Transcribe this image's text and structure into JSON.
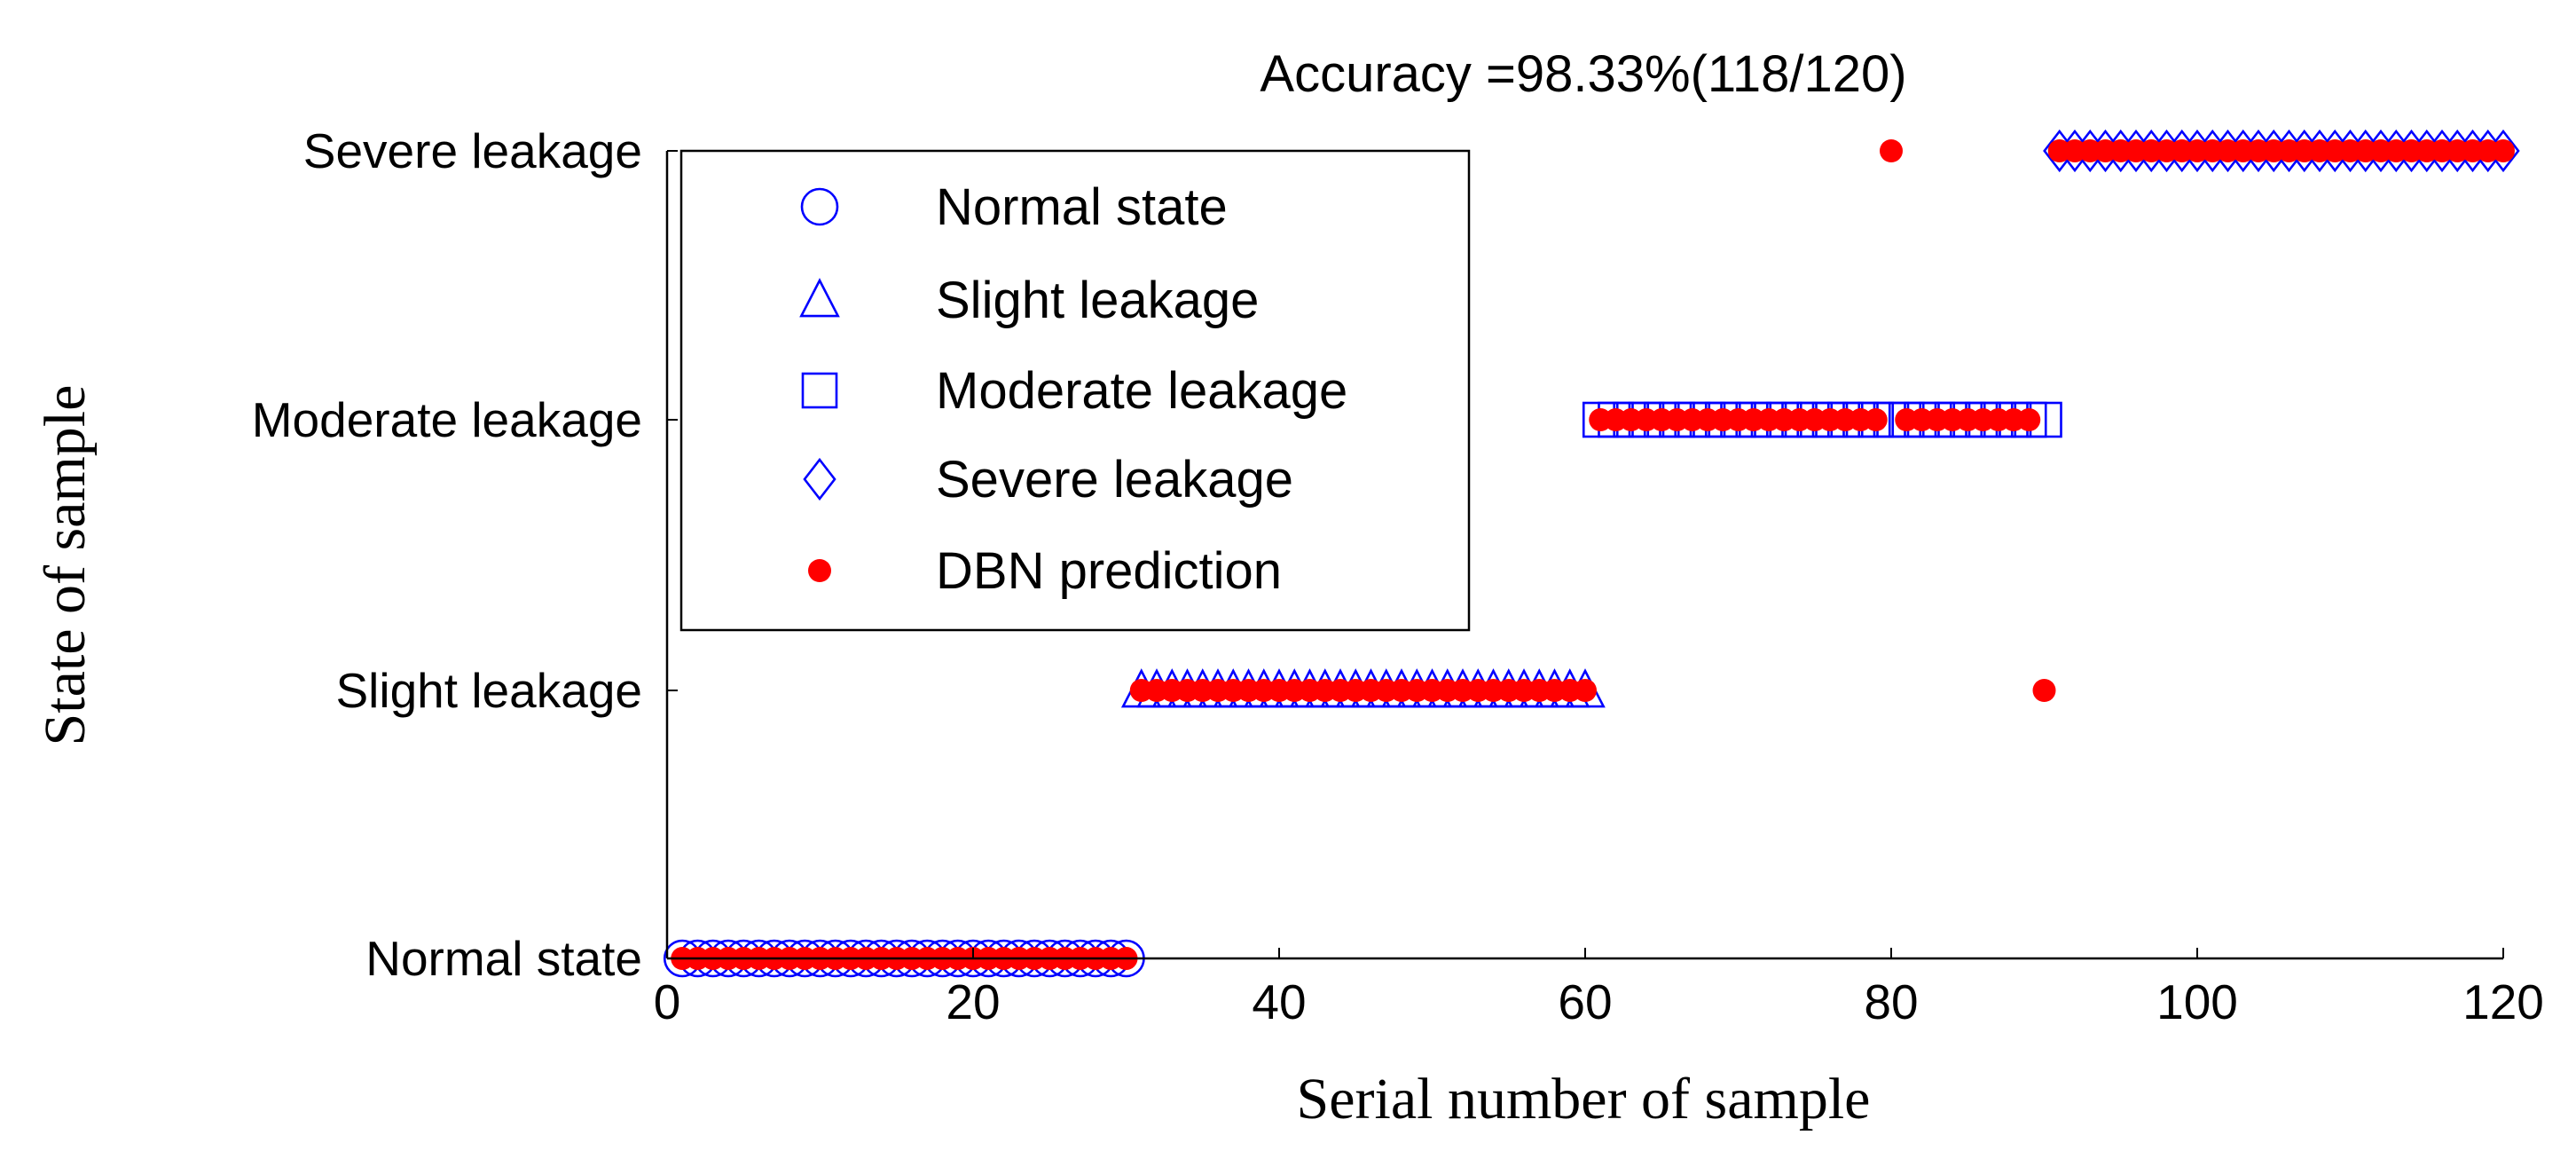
{
  "chart_data": {
    "type": "scatter",
    "title": "Accuracy =98.33%(118/120)",
    "xlabel": "Serial number of sample",
    "ylabel": "State of sample",
    "xlim": [
      0,
      120
    ],
    "xticks": [
      0,
      20,
      40,
      60,
      80,
      100,
      120
    ],
    "categories": [
      "Normal state",
      "Slight leakage",
      "Moderate leakage",
      "Severe leakage"
    ],
    "series": [
      {
        "name": "Normal state",
        "marker": "circle",
        "color": "#0000ff",
        "state": 0,
        "x_range": [
          1,
          30
        ]
      },
      {
        "name": "Slight leakage",
        "marker": "triangle",
        "color": "#0000ff",
        "state": 1,
        "x_range": [
          31,
          60
        ]
      },
      {
        "name": "Moderate leakage",
        "marker": "square",
        "color": "#0000ff",
        "state": 2,
        "x_range": [
          61,
          90
        ]
      },
      {
        "name": "Severe leakage",
        "marker": "diamond",
        "color": "#0000ff",
        "state": 3,
        "x_range": [
          91,
          120
        ]
      },
      {
        "name": "DBN prediction",
        "marker": "dot",
        "color": "#ff0000",
        "x_range": [
          1,
          120
        ],
        "misclassified": [
          {
            "x": 80,
            "state": 3
          },
          {
            "x": 90,
            "state": 1
          }
        ]
      }
    ],
    "legend_position": "top-left"
  }
}
